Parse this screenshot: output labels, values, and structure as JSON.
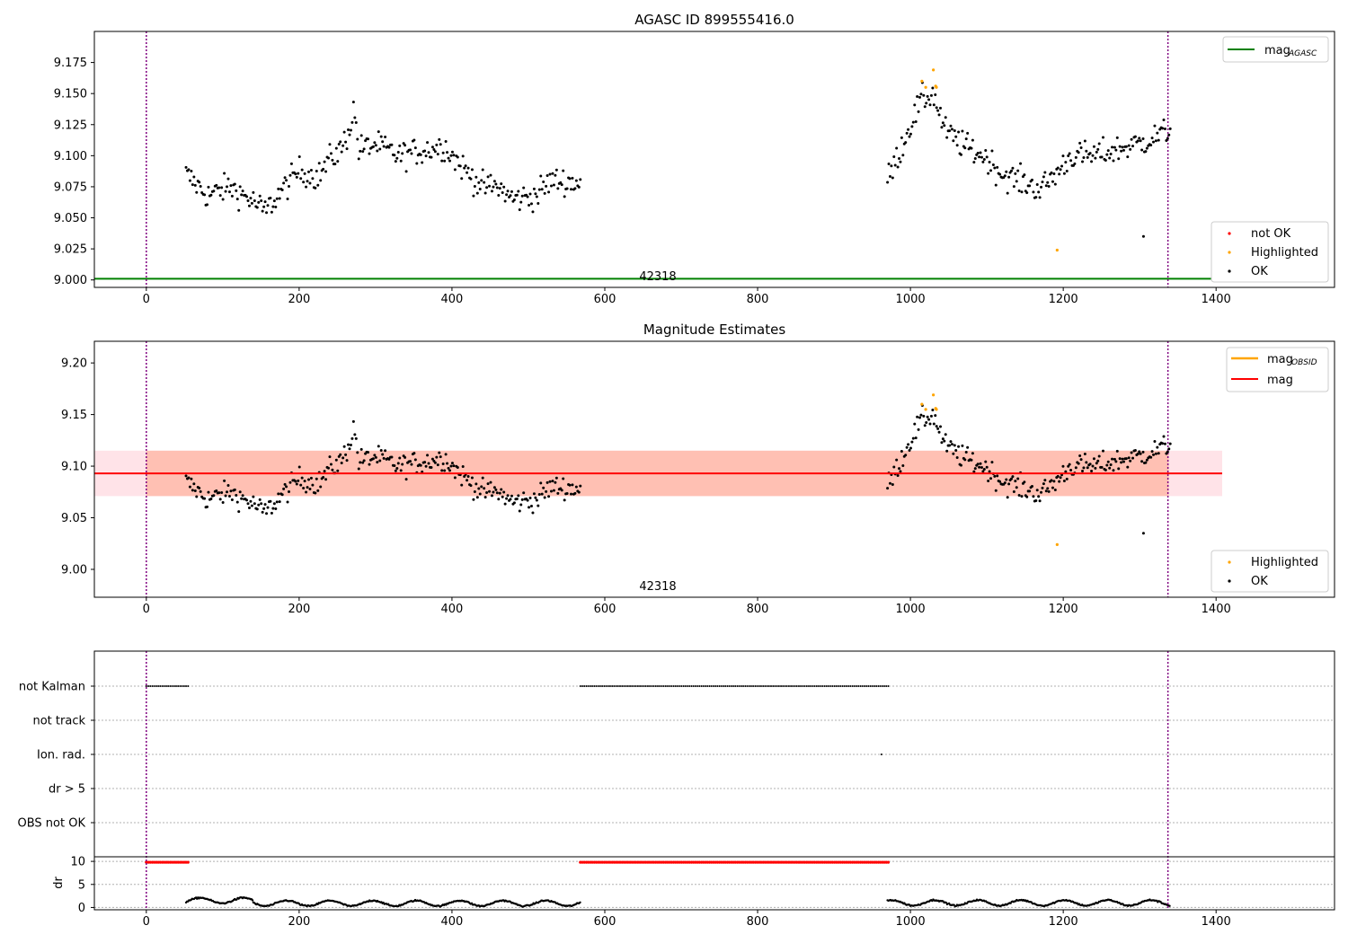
{
  "chart_data": [
    {
      "type": "scatter",
      "title": "AGASC ID 899555416.0",
      "xlabel": "",
      "ylabel": "",
      "xlim": [
        -68,
        1555
      ],
      "ylim": [
        8.994,
        9.2
      ],
      "xticks": [
        "0",
        "200",
        "400",
        "600",
        "800",
        "1000",
        "1200",
        "1400"
      ],
      "yticks": [
        "9.000",
        "9.025",
        "9.050",
        "9.075",
        "9.100",
        "9.125",
        "9.150",
        "9.175"
      ],
      "ytick_values": [
        9.0,
        9.025,
        9.05,
        9.075,
        9.1,
        9.125,
        9.15,
        9.175
      ],
      "vlines": [
        0,
        1337
      ],
      "hline": {
        "y": 9.001,
        "x": [
          -68,
          1408
        ],
        "color": "#008000"
      },
      "obsid_label": {
        "text": "42318",
        "x": 670
      },
      "segments": [
        {
          "x0": 52,
          "x1": 568,
          "anchors": [
            [
              52,
              9.085
            ],
            [
              80,
              9.068
            ],
            [
              110,
              9.075
            ],
            [
              140,
              9.063
            ],
            [
              155,
              9.055
            ],
            [
              175,
              9.07
            ],
            [
              200,
              9.088
            ],
            [
              225,
              9.083
            ],
            [
              240,
              9.097
            ],
            [
              255,
              9.105
            ],
            [
              265,
              9.12
            ],
            [
              272,
              9.138
            ],
            [
              278,
              9.105
            ],
            [
              300,
              9.109
            ],
            [
              330,
              9.1
            ],
            [
              360,
              9.104
            ],
            [
              390,
              9.108
            ],
            [
              410,
              9.093
            ],
            [
              440,
              9.075
            ],
            [
              460,
              9.075
            ],
            [
              480,
              9.065
            ],
            [
              510,
              9.068
            ],
            [
              530,
              9.08
            ],
            [
              568,
              9.078
            ]
          ],
          "jitter": 0.011,
          "count": 300
        },
        {
          "x0": 970,
          "x1": 1340,
          "anchors": [
            [
              970,
              9.08
            ],
            [
              985,
              9.102
            ],
            [
              1000,
              9.125
            ],
            [
              1015,
              9.145
            ],
            [
              1030,
              9.15
            ],
            [
              1045,
              9.12
            ],
            [
              1070,
              9.108
            ],
            [
              1100,
              9.098
            ],
            [
              1120,
              9.085
            ],
            [
              1150,
              9.078
            ],
            [
              1170,
              9.073
            ],
            [
              1190,
              9.085
            ],
            [
              1210,
              9.1
            ],
            [
              1240,
              9.1
            ],
            [
              1270,
              9.105
            ],
            [
              1300,
              9.11
            ],
            [
              1320,
              9.115
            ],
            [
              1340,
              9.12
            ]
          ],
          "jitter": 0.011,
          "count": 220
        }
      ],
      "highlighted": [
        [
          1015,
          9.16
        ],
        [
          1020,
          9.155
        ],
        [
          1030,
          9.169
        ],
        [
          1033,
          9.156
        ],
        [
          1034,
          9.155
        ],
        [
          1192,
          9.024
        ]
      ],
      "outliers": [
        [
          1305,
          9.035
        ]
      ],
      "legend_lines": [
        {
          "label": "mag",
          "sub": "AGASC",
          "color": "#008000"
        }
      ],
      "legend_points": [
        {
          "label": "not OK",
          "color": "#ff0000"
        },
        {
          "label": "Highlighted",
          "color": "#ffa500"
        },
        {
          "label": "OK",
          "color": "#000000"
        }
      ]
    },
    {
      "type": "scatter",
      "title": "Magnitude Estimates",
      "xlabel": "",
      "ylabel": "",
      "xlim": [
        -68,
        1555
      ],
      "ylim": [
        8.973,
        9.221
      ],
      "xticks": [
        "0",
        "200",
        "400",
        "600",
        "800",
        "1000",
        "1200",
        "1400"
      ],
      "yticks": [
        "9.00",
        "9.05",
        "9.10",
        "9.15",
        "9.20"
      ],
      "ytick_values": [
        9.0,
        9.05,
        9.1,
        9.15,
        9.2
      ],
      "vlines": [
        0,
        1337
      ],
      "mag_line": {
        "y": 9.093,
        "x": [
          -68,
          1408
        ],
        "color": "#ff0000"
      },
      "bands": [
        {
          "x": [
            -68,
            1408
          ],
          "y": [
            9.071,
            9.115
          ],
          "color": "#ffc0cb"
        },
        {
          "x": [
            0,
            1338
          ],
          "y": [
            9.071,
            9.115
          ],
          "color": "#ff7f50"
        }
      ],
      "obsid_label": {
        "text": "42318",
        "x": 670
      },
      "legend_lines": [
        {
          "label": "mag",
          "sub": "OBSID",
          "color": "#ffa500"
        },
        {
          "label": "mag",
          "sub": "",
          "color": "#ff0000"
        }
      ],
      "legend_points": [
        {
          "label": "Highlighted",
          "color": "#ffa500"
        },
        {
          "label": "OK",
          "color": "#000000"
        }
      ]
    },
    {
      "type": "scatter",
      "title": "",
      "flags": [
        "not Kalman",
        "not track",
        "Ion. rad.",
        "dr > 5",
        "OBS not OK"
      ],
      "flag_points": {
        "not Kalman": [
          [
            0,
            55
          ],
          [
            568,
            972
          ]
        ],
        "ion_rad_x": 962
      },
      "dr": {
        "yticks": [
          "0",
          "5",
          "10"
        ],
        "ytick_values": [
          0,
          5,
          10
        ],
        "ylabel": "dr",
        "ylim": [
          -0.5,
          10.8
        ],
        "red_ranges": [
          [
            0,
            55
          ],
          [
            568,
            972
          ]
        ],
        "red_value": 9.8,
        "segments": [
          [
            52,
            140,
            1.5
          ],
          [
            140,
            568,
            0.9
          ],
          [
            970,
            1340,
            1.0
          ]
        ]
      },
      "xticks": [
        "0",
        "200",
        "400",
        "600",
        "800",
        "1000",
        "1200",
        "1400"
      ],
      "xlim": [
        -68,
        1555
      ],
      "vlines": [
        0,
        1337
      ]
    }
  ]
}
